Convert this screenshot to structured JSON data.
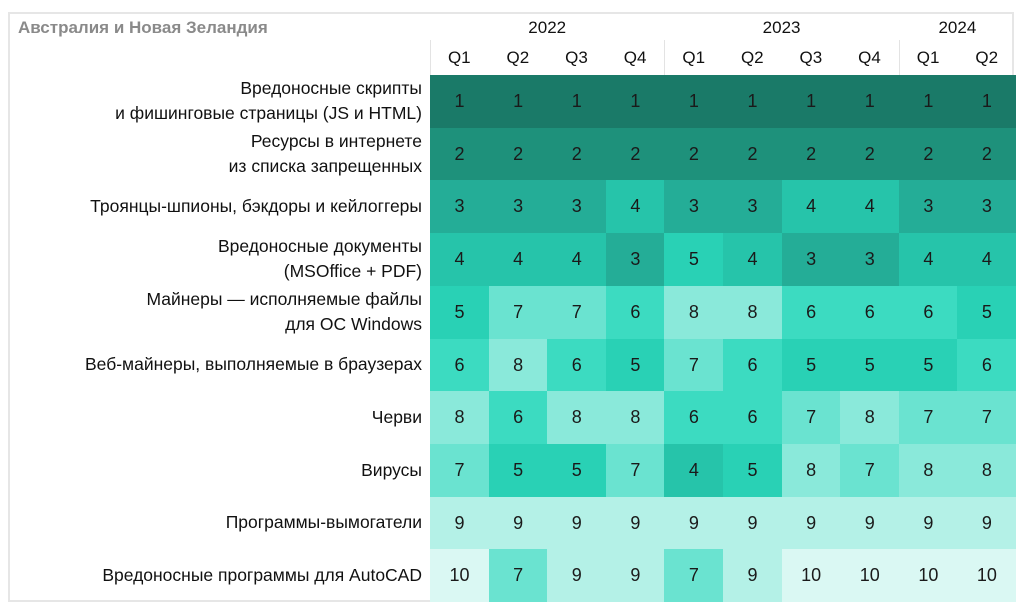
{
  "chart_data": {
    "type": "heatmap",
    "title": "Австралия и Новая Зеландия",
    "years": [
      {
        "label": "2022",
        "span": 4
      },
      {
        "label": "2023",
        "span": 4
      },
      {
        "label": "2024",
        "span": 2
      }
    ],
    "quarters": [
      "Q1",
      "Q2",
      "Q3",
      "Q4",
      "Q1",
      "Q2",
      "Q3",
      "Q4",
      "Q1",
      "Q2"
    ],
    "rows": [
      {
        "label": [
          "Вредоносные скрипты",
          "и фишинговые страницы (JS и HTML)"
        ],
        "values": [
          1,
          1,
          1,
          1,
          1,
          1,
          1,
          1,
          1,
          1
        ]
      },
      {
        "label": [
          "Ресурсы в интернете",
          "из списка запрещенных"
        ],
        "values": [
          2,
          2,
          2,
          2,
          2,
          2,
          2,
          2,
          2,
          2
        ]
      },
      {
        "label": [
          "Троянцы-шпионы, бэкдоры и кейлоггеры"
        ],
        "values": [
          3,
          3,
          3,
          4,
          3,
          3,
          4,
          4,
          3,
          3
        ]
      },
      {
        "label": [
          "Вредоносные документы",
          "(MSOffice + PDF)"
        ],
        "values": [
          4,
          4,
          4,
          3,
          5,
          4,
          3,
          3,
          4,
          4
        ]
      },
      {
        "label": [
          "Майнеры — исполняемые файлы",
          "для ОС Windows"
        ],
        "values": [
          5,
          7,
          7,
          6,
          8,
          8,
          6,
          6,
          6,
          5
        ]
      },
      {
        "label": [
          "Веб-майнеры, выполняемые в браузерах"
        ],
        "values": [
          6,
          8,
          6,
          5,
          7,
          6,
          5,
          5,
          5,
          6
        ]
      },
      {
        "label": [
          "Черви"
        ],
        "values": [
          8,
          6,
          8,
          8,
          6,
          6,
          7,
          8,
          7,
          7
        ]
      },
      {
        "label": [
          "Вирусы"
        ],
        "values": [
          7,
          5,
          5,
          7,
          4,
          5,
          8,
          7,
          8,
          8
        ]
      },
      {
        "label": [
          "Программы-вымогатели"
        ],
        "values": [
          9,
          9,
          9,
          9,
          9,
          9,
          9,
          9,
          9,
          9
        ]
      },
      {
        "label": [
          "Вредоносные программы для AutoCAD"
        ],
        "values": [
          10,
          7,
          9,
          9,
          7,
          9,
          10,
          10,
          10,
          10
        ]
      }
    ],
    "color_scale": {
      "1": "#1a7a68",
      "2": "#1e917b",
      "3": "#24ad97",
      "4": "#26c4aa",
      "5": "#29d1b5",
      "6": "#3cdbc1",
      "7": "#6ae3d0",
      "8": "#8ae9da",
      "9": "#b4f1e7",
      "10": "#daf8f3"
    }
  }
}
